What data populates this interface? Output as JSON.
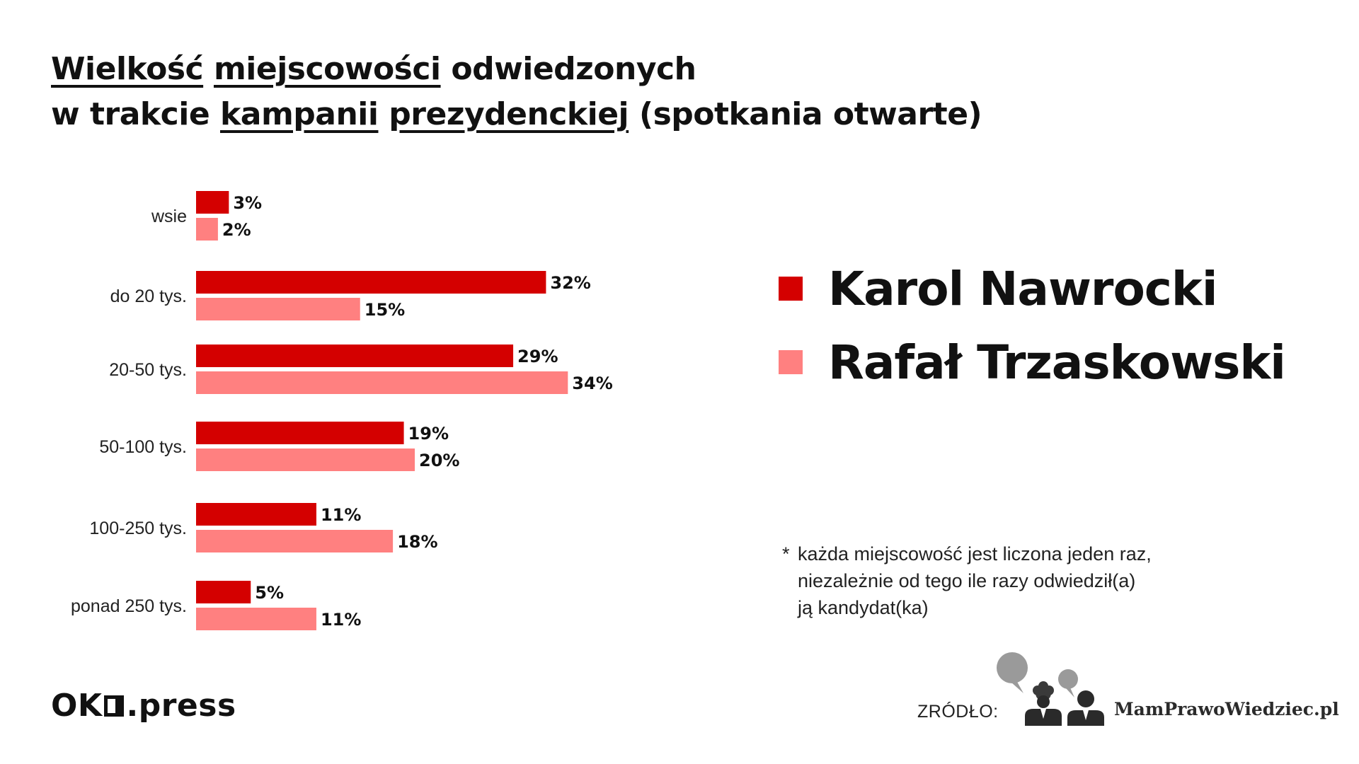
{
  "title": {
    "line1": [
      {
        "text": "Wielkość",
        "u": true
      },
      {
        "text": " ",
        "u": false
      },
      {
        "text": "miejscowości",
        "u": true
      },
      {
        "text": " odwiedzonych",
        "u": false
      }
    ],
    "line2": [
      {
        "text": "w trakcie ",
        "u": false
      },
      {
        "text": "kampanii",
        "u": true
      },
      {
        "text": " ",
        "u": false
      },
      {
        "text": "prezydenckiej",
        "u": true
      },
      {
        "text": " (spotkania otwarte)",
        "u": false
      }
    ]
  },
  "colors": {
    "nawrocki": "#d40000",
    "trzaskowski": "#ff8080",
    "text": "#111111"
  },
  "chart_data": {
    "type": "bar",
    "orientation": "horizontal",
    "categories": [
      "wsie",
      "do 20 tys.",
      "20-50 tys.",
      "50-100 tys.",
      "100-250 tys.",
      "ponad 250 tys."
    ],
    "series": [
      {
        "name": "Karol Nawrocki",
        "values": [
          3,
          32,
          29,
          19,
          11,
          5
        ]
      },
      {
        "name": "Rafał Trzaskowski",
        "values": [
          2,
          15,
          34,
          20,
          18,
          11
        ]
      }
    ],
    "value_suffix": "%",
    "xlim": [
      0,
      34
    ],
    "grid": false,
    "legend_position": "right"
  },
  "legend": {
    "items": [
      {
        "label": "Karol Nawrocki",
        "color": "#d40000"
      },
      {
        "label": "Rafał Trzaskowski",
        "color": "#ff8080"
      }
    ]
  },
  "footnote": {
    "star": "*",
    "lines": [
      "każda miejscowość jest liczona jeden raz,",
      "niezależnie od tego ile razy odwiedził(a)",
      "ją kandydat(ka)"
    ]
  },
  "footer": {
    "logo_ok": "OK",
    "logo_press": ".press",
    "source_label": "ZRÓDŁO:",
    "source_name": "MamPrawoWiedziec.pl"
  }
}
